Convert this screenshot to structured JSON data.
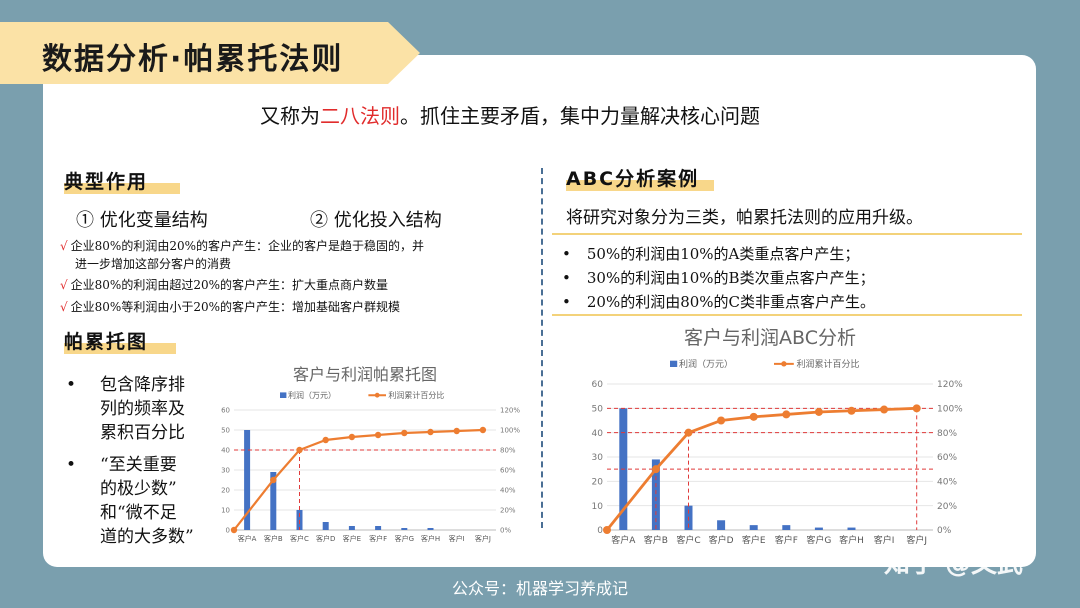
{
  "banner": {
    "title": "数据分析·帕累托法则"
  },
  "subtitle": {
    "prefix": "又称为",
    "highlight": "二八法则",
    "suffix": "。抓住主要矛盾，集中力量解决核心问题"
  },
  "left": {
    "section1": "典型作用",
    "items": [
      "① 优化变量结构",
      "② 优化投入结构"
    ],
    "check_mark": "√",
    "checks": [
      "企业80%的利润由20%的客户产生：企业的客户是趋于稳固的，并",
      "进一步增加这部分客户的消费",
      "企业80%的利润由超过20%的客户产生：扩大重点商户数量",
      "企业80%等利润由小于20%的客户产生：增加基础客户群规模"
    ],
    "section2": "帕累托图",
    "bullet_mark": "•",
    "bullets": [
      [
        "包含降序排",
        "列的频率及",
        "累积百分比"
      ],
      [
        "“至关重要",
        "的极少数”",
        "和“微不足",
        "道的大多数”"
      ]
    ]
  },
  "right": {
    "section": "ABC分析案例",
    "text": "将研究对象分为三类，帕累托法则的应用升级。",
    "bullet_mark": "•",
    "bullets": [
      "50%的利润由10%的A类重点客户产生；",
      "30%的利润由10%的B类次重点客户产生；",
      "20%的利润由80%的C类非重点客户产生。"
    ]
  },
  "colors": {
    "bar": "#4472c4",
    "line": "#ed7d31",
    "highlight": "#e12c2c",
    "ref": "#e03a3a"
  },
  "chart_data": [
    {
      "type": "bar",
      "title": "客户与利润帕累托图",
      "categories": [
        "客户A",
        "客户B",
        "客户C",
        "客户D",
        "客户E",
        "客户F",
        "客户G",
        "客户H",
        "客户I",
        "客户J"
      ],
      "series": [
        {
          "name": "利润（万元）",
          "type": "bar",
          "values": [
            50,
            29,
            10,
            4,
            2,
            2,
            1,
            1,
            0,
            0
          ]
        },
        {
          "name": "利润累计百分比",
          "type": "line",
          "axis": "right",
          "values": [
            0,
            50,
            80,
            90,
            93,
            95,
            97,
            98,
            99,
            100
          ]
        }
      ],
      "yticks": [
        "0",
        "10",
        "20",
        "30",
        "40",
        "50",
        "60"
      ],
      "y2ticks": [
        "0%",
        "20%",
        "40%",
        "60%",
        "80%",
        "100%",
        "120%"
      ],
      "ylim": [
        0,
        60
      ],
      "y2lim": [
        0,
        120
      ],
      "ref_value": 80,
      "legend": "top"
    },
    {
      "type": "bar",
      "title": "客户与利润ABC分析",
      "categories": [
        "客户A",
        "客户B",
        "客户C",
        "客户D",
        "客户E",
        "客户F",
        "客户G",
        "客户H",
        "客户I",
        "客户J"
      ],
      "series": [
        {
          "name": "利润（万元）",
          "type": "bar",
          "values": [
            50,
            29,
            10,
            4,
            2,
            2,
            1,
            1,
            0,
            0
          ]
        },
        {
          "name": "利润累计百分比",
          "type": "line",
          "axis": "right",
          "values": [
            0,
            50,
            80,
            90,
            93,
            95,
            97,
            98,
            99,
            100
          ]
        }
      ],
      "yticks": [
        "0",
        "10",
        "20",
        "30",
        "40",
        "50",
        "60"
      ],
      "y2ticks": [
        "0%",
        "20%",
        "40%",
        "60%",
        "80%",
        "100%",
        "120%"
      ],
      "ylim": [
        0,
        60
      ],
      "y2lim": [
        0,
        120
      ],
      "ref_values": [
        50,
        80,
        100
      ],
      "legend": "top"
    }
  ],
  "footer": "公众号：机器学习养成记",
  "watermark": "知乎 @文武"
}
